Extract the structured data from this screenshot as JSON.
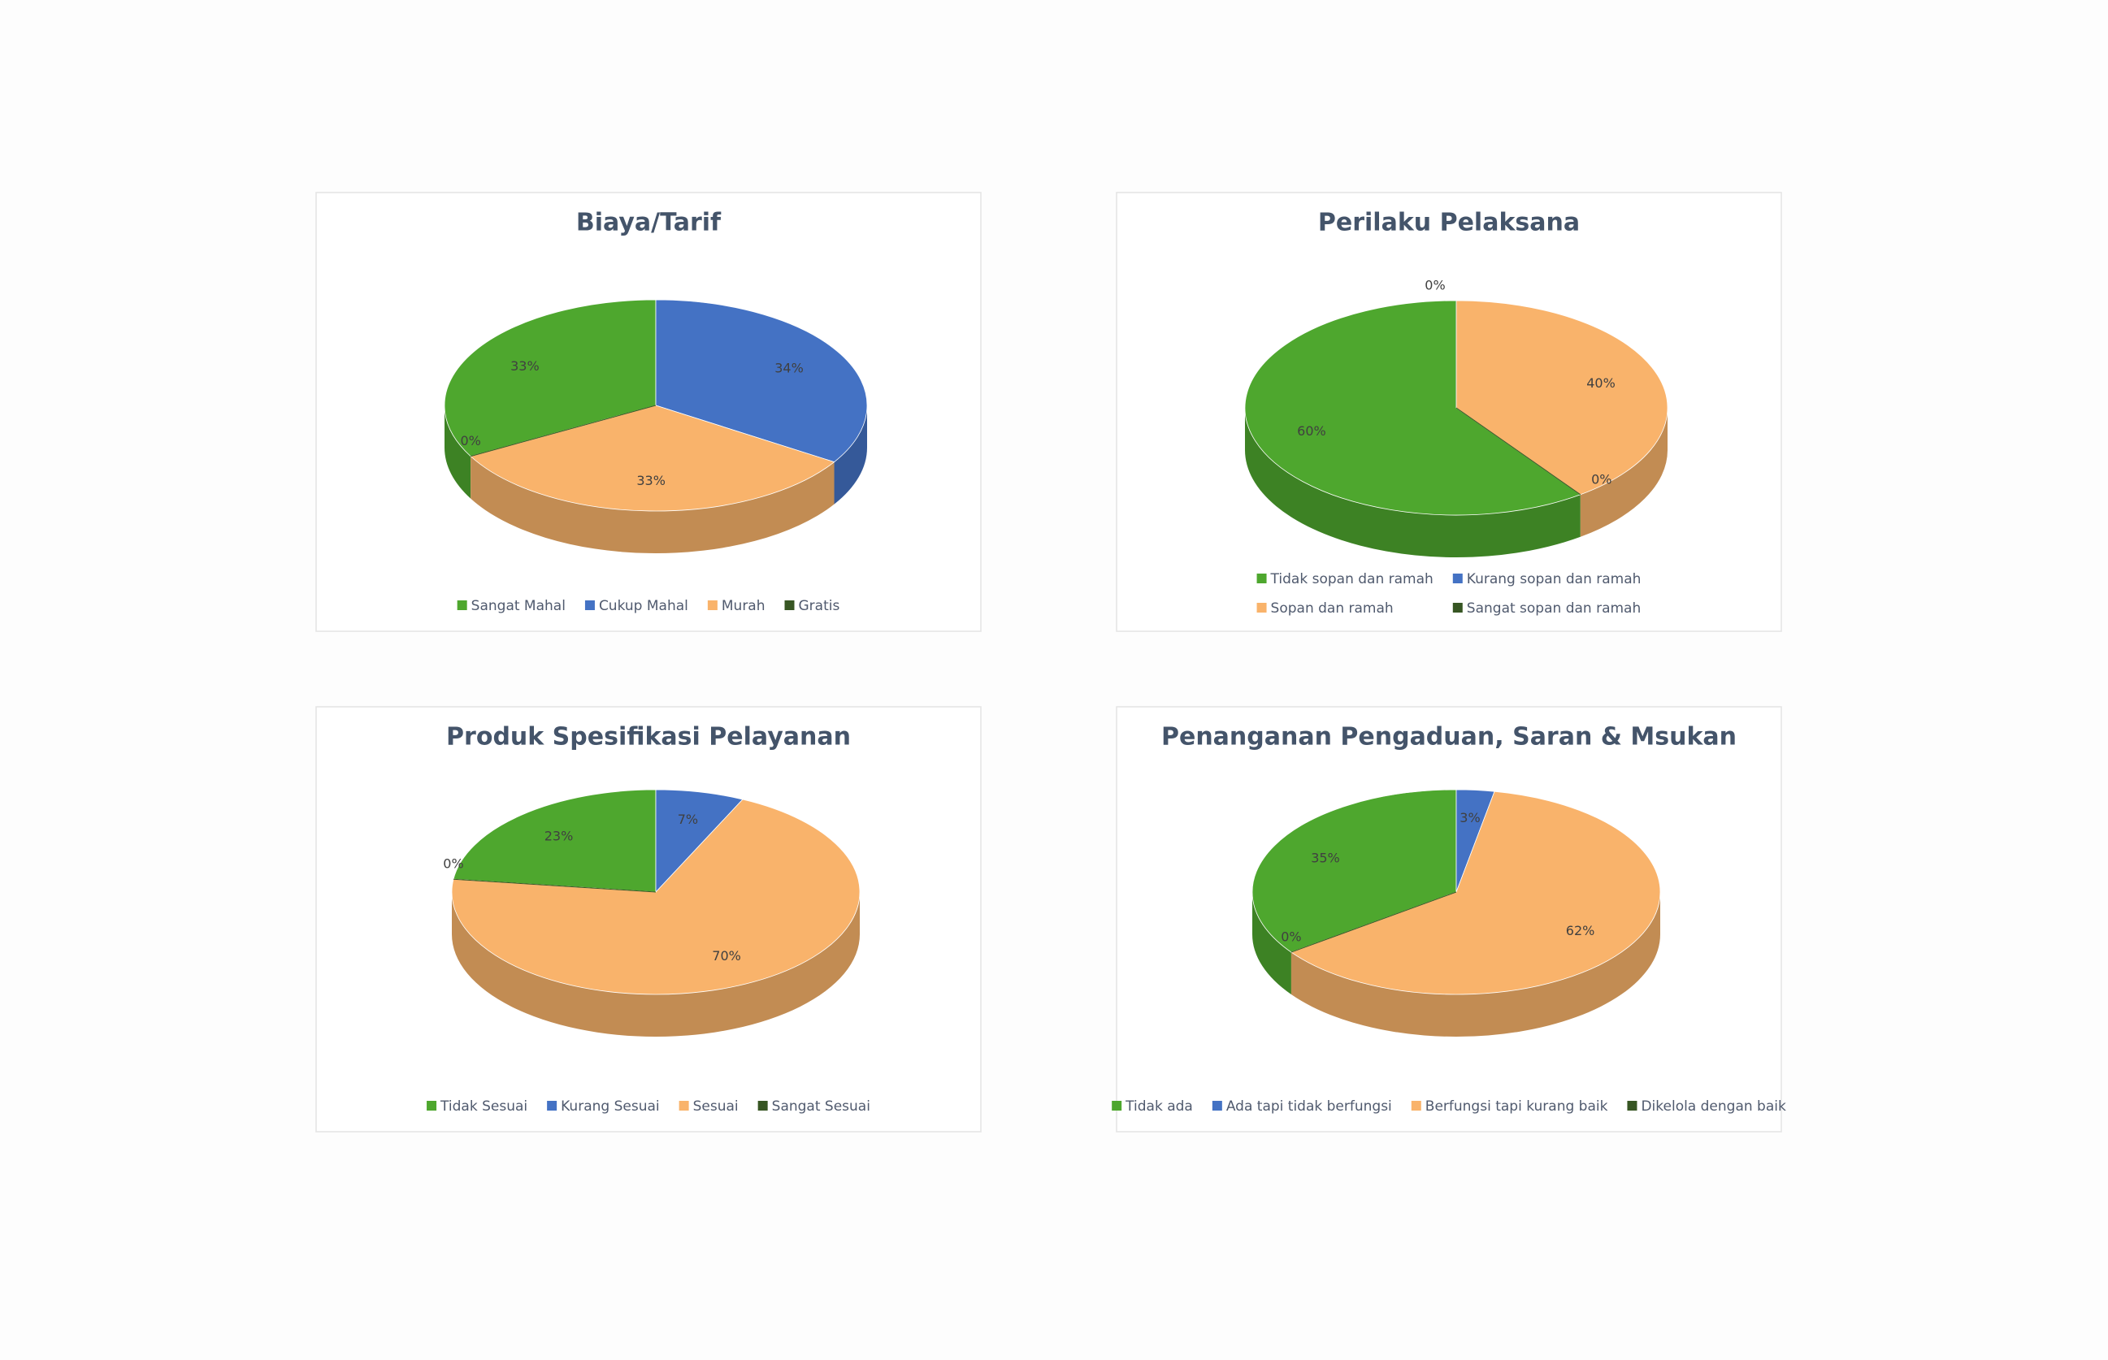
{
  "chart_data": [
    {
      "type": "pie",
      "title": "Biaya/Tarif",
      "categories": [
        "Sangat Mahal",
        "Cukup Mahal",
        "Murah",
        "Gratis"
      ],
      "values": [
        33,
        34,
        33,
        0
      ],
      "value_labels": [
        "33%",
        "34%",
        "33%",
        "0%"
      ],
      "colors": [
        "#4ea72e",
        "#4472c4",
        "#f9b36b",
        "#375623"
      ]
    },
    {
      "type": "pie",
      "title": "Perilaku Pelaksana",
      "categories": [
        "Tidak sopan dan ramah",
        "Kurang sopan dan ramah",
        "Sopan dan ramah",
        "Sangat sopan dan ramah"
      ],
      "values": [
        60,
        0,
        40,
        0
      ],
      "value_labels": [
        "60%",
        "0%",
        "40%",
        "0%"
      ],
      "colors": [
        "#4ea72e",
        "#4472c4",
        "#f9b36b",
        "#375623"
      ]
    },
    {
      "type": "pie",
      "title": "Produk Spesifikasi Pelayanan",
      "categories": [
        "Tidak Sesuai",
        "Kurang Sesuai",
        "Sesuai",
        "Sangat Sesuai"
      ],
      "values": [
        23,
        7,
        70,
        0
      ],
      "value_labels": [
        "23%",
        "7%",
        "70%",
        "0%"
      ],
      "colors": [
        "#4ea72e",
        "#4472c4",
        "#f9b36b",
        "#375623"
      ]
    },
    {
      "type": "pie",
      "title": "Penanganan Pengaduan, Saran & Msukan",
      "categories": [
        "Tidak ada",
        "Ada tapi tidak berfungsi",
        "Berfungsi tapi kurang baik",
        "Dikelola dengan baik"
      ],
      "values": [
        35,
        3,
        62,
        0
      ],
      "value_labels": [
        "35%",
        "3%",
        "62%",
        "0%"
      ],
      "colors": [
        "#4ea72e",
        "#4472c4",
        "#f9b36b",
        "#375623"
      ]
    }
  ]
}
